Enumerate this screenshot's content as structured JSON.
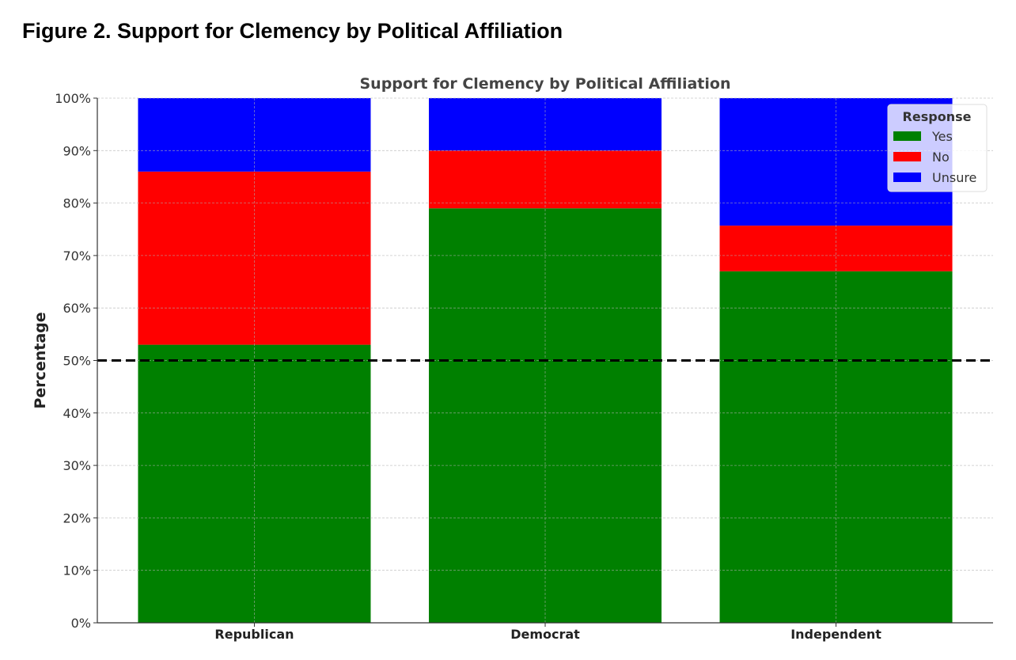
{
  "figure_title": "Figure 2. Support for Clemency by Political Affiliation",
  "chart_data": {
    "type": "bar",
    "stacked": true,
    "title": "Support for Clemency by Political Affiliation",
    "xlabel": "",
    "ylabel": "Percentage",
    "categories": [
      "Republican",
      "Democrat",
      "Independent"
    ],
    "series": [
      {
        "name": "Yes",
        "color": "#008000",
        "values": [
          53,
          79,
          67
        ]
      },
      {
        "name": "No",
        "color": "#ff0000",
        "values": [
          33,
          11,
          8.7
        ]
      },
      {
        "name": "Unsure",
        "color": "#0000ff",
        "values": [
          14,
          10,
          24.3
        ]
      }
    ],
    "ylim": [
      0,
      100
    ],
    "yticks": [
      0,
      10,
      20,
      30,
      40,
      50,
      60,
      70,
      80,
      90,
      100
    ],
    "ytick_labels": [
      "0%",
      "10%",
      "20%",
      "30%",
      "40%",
      "50%",
      "60%",
      "70%",
      "80%",
      "90%",
      "100%"
    ],
    "reference_line": {
      "y": 50,
      "style": "dashed",
      "color": "#000000"
    },
    "grid": true,
    "legend": {
      "title": "Response",
      "position": "top-right"
    }
  }
}
